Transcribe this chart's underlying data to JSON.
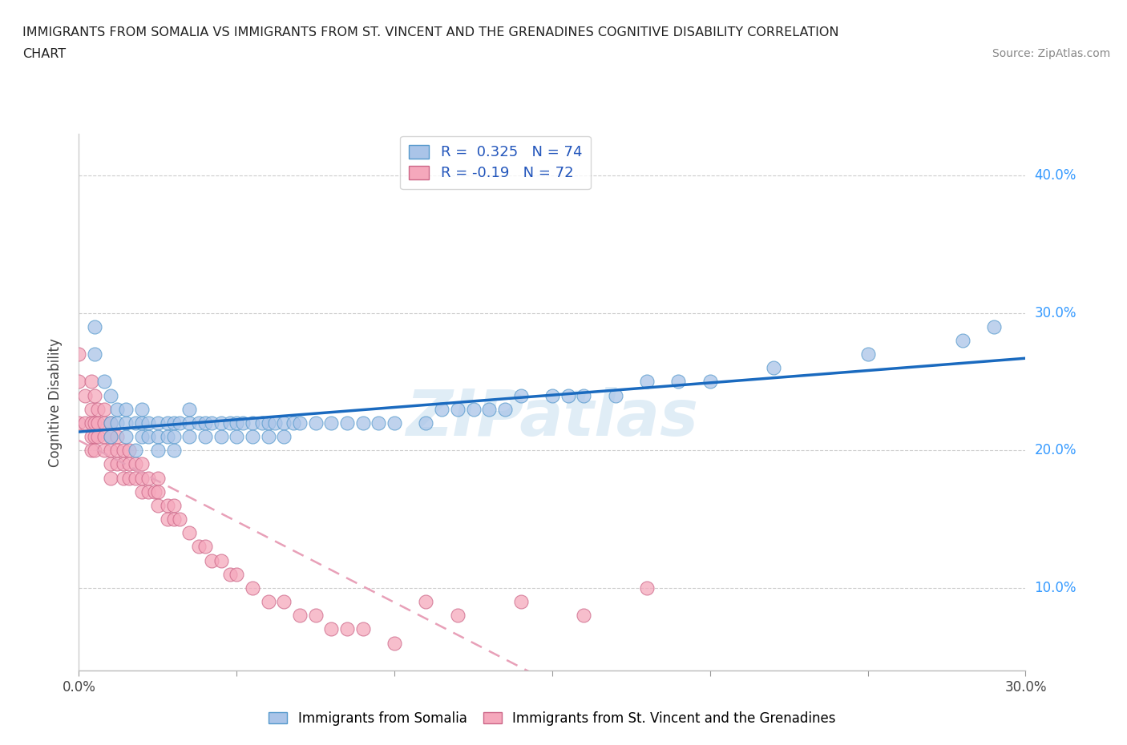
{
  "title_line1": "IMMIGRANTS FROM SOMALIA VS IMMIGRANTS FROM ST. VINCENT AND THE GRENADINES COGNITIVE DISABILITY CORRELATION",
  "title_line2": "CHART",
  "source": "Source: ZipAtlas.com",
  "ylabel": "Cognitive Disability",
  "xlim": [
    0.0,
    0.3
  ],
  "ylim": [
    0.04,
    0.43
  ],
  "ytick_positions": [
    0.1,
    0.2,
    0.3,
    0.4
  ],
  "ytick_labels": [
    "10.0%",
    "20.0%",
    "30.0%",
    "40.0%"
  ],
  "xtick_positions": [
    0.0,
    0.05,
    0.1,
    0.15,
    0.2,
    0.25,
    0.3
  ],
  "xtick_labels": [
    "0.0%",
    "",
    "",
    "",
    "",
    "",
    "30.0%"
  ],
  "somalia_color": "#aac4e8",
  "somalia_edge": "#5599cc",
  "stvincent_color": "#f5a8bc",
  "stvincent_edge": "#cc6688",
  "trend_somalia_color": "#1a6abf",
  "trend_stvincent_color": "#e8a0b8",
  "legend_somalia_label": "Immigrants from Somalia",
  "legend_stvincent_label": "Immigrants from St. Vincent and the Grenadines",
  "R_somalia": 0.325,
  "N_somalia": 74,
  "R_stvincent": -0.19,
  "N_stvincent": 72,
  "watermark": "ZIPatlas",
  "somalia_x": [
    0.005,
    0.005,
    0.008,
    0.01,
    0.01,
    0.01,
    0.012,
    0.012,
    0.015,
    0.015,
    0.015,
    0.018,
    0.018,
    0.02,
    0.02,
    0.02,
    0.022,
    0.022,
    0.025,
    0.025,
    0.025,
    0.028,
    0.028,
    0.03,
    0.03,
    0.03,
    0.032,
    0.035,
    0.035,
    0.035,
    0.038,
    0.04,
    0.04,
    0.042,
    0.045,
    0.045,
    0.048,
    0.05,
    0.05,
    0.052,
    0.055,
    0.055,
    0.058,
    0.06,
    0.06,
    0.062,
    0.065,
    0.065,
    0.068,
    0.07,
    0.075,
    0.08,
    0.085,
    0.09,
    0.095,
    0.1,
    0.11,
    0.115,
    0.12,
    0.125,
    0.13,
    0.135,
    0.14,
    0.15,
    0.155,
    0.16,
    0.17,
    0.18,
    0.19,
    0.2,
    0.22,
    0.25,
    0.28,
    0.29
  ],
  "somalia_y": [
    0.27,
    0.29,
    0.25,
    0.22,
    0.24,
    0.21,
    0.22,
    0.23,
    0.22,
    0.23,
    0.21,
    0.22,
    0.2,
    0.22,
    0.21,
    0.23,
    0.21,
    0.22,
    0.22,
    0.21,
    0.2,
    0.22,
    0.21,
    0.22,
    0.21,
    0.2,
    0.22,
    0.22,
    0.23,
    0.21,
    0.22,
    0.22,
    0.21,
    0.22,
    0.22,
    0.21,
    0.22,
    0.22,
    0.21,
    0.22,
    0.22,
    0.21,
    0.22,
    0.22,
    0.21,
    0.22,
    0.22,
    0.21,
    0.22,
    0.22,
    0.22,
    0.22,
    0.22,
    0.22,
    0.22,
    0.22,
    0.22,
    0.23,
    0.23,
    0.23,
    0.23,
    0.23,
    0.24,
    0.24,
    0.24,
    0.24,
    0.24,
    0.25,
    0.25,
    0.25,
    0.26,
    0.27,
    0.28,
    0.29
  ],
  "stvincent_x": [
    0.0,
    0.0,
    0.0,
    0.002,
    0.002,
    0.004,
    0.004,
    0.004,
    0.004,
    0.004,
    0.005,
    0.005,
    0.005,
    0.005,
    0.006,
    0.006,
    0.006,
    0.008,
    0.008,
    0.008,
    0.008,
    0.01,
    0.01,
    0.01,
    0.01,
    0.01,
    0.012,
    0.012,
    0.012,
    0.014,
    0.014,
    0.014,
    0.016,
    0.016,
    0.016,
    0.018,
    0.018,
    0.02,
    0.02,
    0.02,
    0.022,
    0.022,
    0.024,
    0.025,
    0.025,
    0.025,
    0.028,
    0.028,
    0.03,
    0.03,
    0.032,
    0.035,
    0.038,
    0.04,
    0.042,
    0.045,
    0.048,
    0.05,
    0.055,
    0.06,
    0.065,
    0.07,
    0.075,
    0.08,
    0.085,
    0.09,
    0.1,
    0.11,
    0.12,
    0.14,
    0.16,
    0.18
  ],
  "stvincent_y": [
    0.22,
    0.25,
    0.27,
    0.22,
    0.24,
    0.22,
    0.21,
    0.23,
    0.2,
    0.25,
    0.22,
    0.21,
    0.24,
    0.2,
    0.22,
    0.21,
    0.23,
    0.22,
    0.21,
    0.2,
    0.23,
    0.22,
    0.21,
    0.2,
    0.19,
    0.18,
    0.21,
    0.2,
    0.19,
    0.2,
    0.19,
    0.18,
    0.2,
    0.19,
    0.18,
    0.19,
    0.18,
    0.19,
    0.18,
    0.17,
    0.18,
    0.17,
    0.17,
    0.18,
    0.17,
    0.16,
    0.16,
    0.15,
    0.16,
    0.15,
    0.15,
    0.14,
    0.13,
    0.13,
    0.12,
    0.12,
    0.11,
    0.11,
    0.1,
    0.09,
    0.09,
    0.08,
    0.08,
    0.07,
    0.07,
    0.07,
    0.06,
    0.09,
    0.08,
    0.09,
    0.08,
    0.1
  ]
}
